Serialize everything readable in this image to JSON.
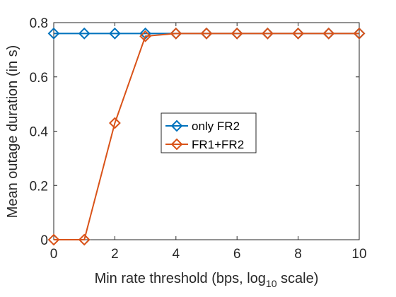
{
  "chart_data": {
    "type": "line",
    "xlabel": "Min rate threshold (bps, log",
    "xlabel_subscript": "10",
    "xlabel_suffix": " scale)",
    "ylabel": "Mean outage duration (in s)",
    "xlim": [
      0,
      10
    ],
    "ylim": [
      0,
      0.8
    ],
    "xticks": [
      0,
      2,
      4,
      6,
      8,
      10
    ],
    "yticks": [
      0,
      0.2,
      0.4,
      0.6,
      0.8
    ],
    "grid": false,
    "legend_position": "center",
    "x": [
      0,
      1,
      2,
      3,
      4,
      5,
      6,
      7,
      8,
      9,
      10
    ],
    "series": [
      {
        "name": "only FR2",
        "color": "#0072BD",
        "marker": "diamond",
        "values": [
          0.76,
          0.76,
          0.76,
          0.76,
          0.76,
          0.76,
          0.76,
          0.76,
          0.76,
          0.76,
          0.76
        ]
      },
      {
        "name": "FR1+FR2",
        "color": "#D95319",
        "marker": "diamond",
        "values": [
          0,
          0,
          0.43,
          0.75,
          0.76,
          0.76,
          0.76,
          0.76,
          0.76,
          0.76,
          0.76
        ]
      }
    ]
  }
}
